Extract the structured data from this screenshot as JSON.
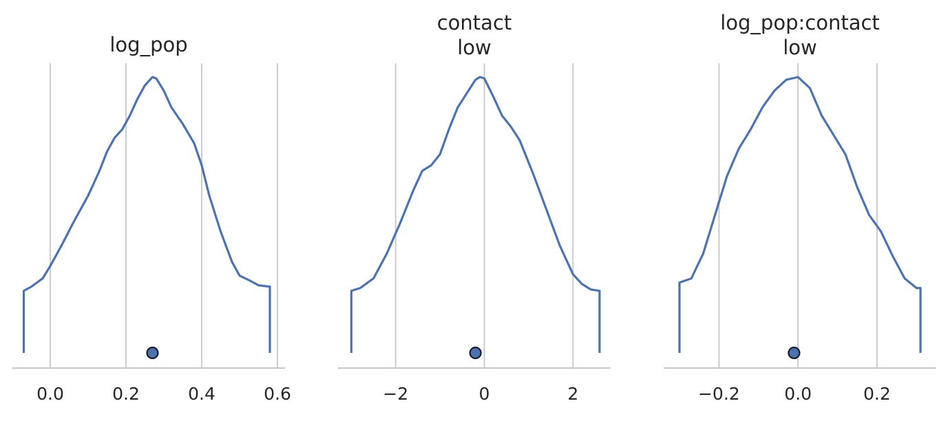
{
  "colors": {
    "line": "#4c72b0",
    "marker": "#4c72b0",
    "marker_edge": "#1a1a2e",
    "grid": "#cccccc",
    "axis": "#cccccc",
    "text": "#262626"
  },
  "chart_data": [
    {
      "type": "line",
      "title": [
        "log_pop"
      ],
      "xlim": [
        -0.1,
        0.62
      ],
      "xticks": [
        0.0,
        0.2,
        0.4,
        0.6
      ],
      "xtick_labels": [
        "0.0",
        "0.2",
        "0.4",
        "0.6"
      ],
      "grid": true,
      "density": {
        "x": [
          -0.07,
          -0.05,
          -0.02,
          0.0,
          0.03,
          0.06,
          0.1,
          0.13,
          0.15,
          0.17,
          0.19,
          0.21,
          0.23,
          0.25,
          0.27,
          0.28,
          0.3,
          0.32,
          0.35,
          0.38,
          0.4,
          0.42,
          0.45,
          0.48,
          0.5,
          0.53,
          0.55,
          0.58
        ],
        "y": [
          0.225,
          0.24,
          0.27,
          0.315,
          0.39,
          0.47,
          0.57,
          0.66,
          0.73,
          0.78,
          0.81,
          0.86,
          0.92,
          0.97,
          1.0,
          0.995,
          0.95,
          0.89,
          0.83,
          0.76,
          0.68,
          0.57,
          0.44,
          0.33,
          0.28,
          0.26,
          0.245,
          0.24
        ]
      },
      "point_estimate": 0.27
    },
    {
      "type": "line",
      "title": [
        "contact",
        "low"
      ],
      "xlim": [
        -3.3,
        2.85
      ],
      "xticks": [
        -2,
        0,
        2
      ],
      "xtick_labels": [
        "−2",
        "0",
        "2"
      ],
      "grid": true,
      "density": {
        "x": [
          -3.0,
          -2.8,
          -2.5,
          -2.2,
          -1.9,
          -1.6,
          -1.4,
          -1.2,
          -1.0,
          -0.8,
          -0.6,
          -0.4,
          -0.2,
          -0.1,
          0.0,
          0.2,
          0.4,
          0.6,
          0.8,
          1.1,
          1.4,
          1.7,
          2.0,
          2.2,
          2.4,
          2.6
        ],
        "y": [
          0.225,
          0.235,
          0.27,
          0.36,
          0.47,
          0.59,
          0.66,
          0.68,
          0.72,
          0.81,
          0.89,
          0.94,
          0.99,
          1.0,
          0.995,
          0.93,
          0.86,
          0.82,
          0.77,
          0.65,
          0.52,
          0.39,
          0.285,
          0.25,
          0.23,
          0.225
        ]
      },
      "point_estimate": -0.2
    },
    {
      "type": "line",
      "title": [
        "log_pop:contact",
        "low"
      ],
      "xlim": [
        -0.34,
        0.35
      ],
      "xticks": [
        -0.2,
        0.0,
        0.2
      ],
      "xtick_labels": [
        "−0.2",
        "0.0",
        "0.2"
      ],
      "grid": true,
      "density": {
        "x": [
          -0.3,
          -0.27,
          -0.24,
          -0.21,
          -0.18,
          -0.15,
          -0.12,
          -0.09,
          -0.06,
          -0.03,
          0.0,
          0.03,
          0.06,
          0.09,
          0.12,
          0.15,
          0.18,
          0.21,
          0.24,
          0.27,
          0.3,
          0.31
        ],
        "y": [
          0.255,
          0.27,
          0.36,
          0.5,
          0.64,
          0.74,
          0.81,
          0.89,
          0.95,
          0.99,
          1.0,
          0.96,
          0.86,
          0.79,
          0.72,
          0.6,
          0.5,
          0.44,
          0.35,
          0.27,
          0.235,
          0.235
        ]
      },
      "point_estimate": -0.01
    }
  ]
}
